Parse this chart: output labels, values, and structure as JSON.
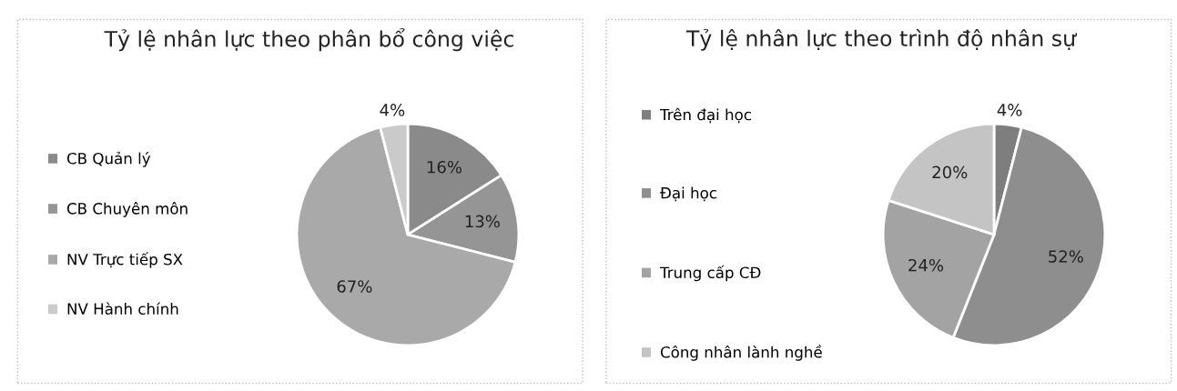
{
  "chart_data": [
    {
      "type": "pie",
      "title": "Tỷ lệ nhân lực theo phân bổ công việc",
      "categories": [
        "CB Quản lý",
        "CB Chuyên môn",
        "NV Trực tiếp SX",
        "NV Hành chính"
      ],
      "values": [
        16,
        13,
        67,
        4
      ],
      "value_labels": [
        "16%",
        "13%",
        "67%",
        "4%"
      ],
      "colors": [
        "#8a8a8a",
        "#959595",
        "#a9a9a9",
        "#cacaca"
      ],
      "legend": "left"
    },
    {
      "type": "pie",
      "title": "Tỷ lệ nhân lực theo trình độ nhân sự",
      "categories": [
        "Trên đại học",
        "Đại học",
        "Trung cấp CĐ",
        "Công nhân lành nghề"
      ],
      "values": [
        4,
        52,
        24,
        20
      ],
      "value_labels": [
        "4%",
        "52%",
        "24%",
        "20%"
      ],
      "colors": [
        "#7e7e7e",
        "#8e8e8e",
        "#a3a3a3",
        "#c4c4c4"
      ],
      "legend": "left"
    }
  ]
}
